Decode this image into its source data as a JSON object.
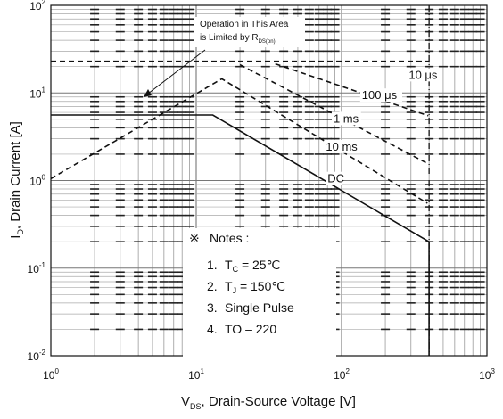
{
  "chart_data": {
    "type": "line",
    "xscale": "log",
    "yscale": "log",
    "xlim": [
      1,
      1000
    ],
    "ylim": [
      0.01,
      100
    ],
    "xlabel_main": "V",
    "xlabel_sub": "DS",
    "xlabel_rest": ", Drain-Source Voltage [V]",
    "ylabel_main": "I",
    "ylabel_sub": "D",
    "ylabel_rest": ", Drain Current [A]",
    "x_ticks": [
      {
        "value": 1,
        "base": "10",
        "exp": "0"
      },
      {
        "value": 10,
        "base": "10",
        "exp": "1"
      },
      {
        "value": 100,
        "base": "10",
        "exp": "2"
      },
      {
        "value": 1000,
        "base": "10",
        "exp": "3"
      }
    ],
    "y_ticks": [
      {
        "value": 100,
        "base": "10",
        "exp": "2"
      },
      {
        "value": 10,
        "base": "10",
        "exp": "1"
      },
      {
        "value": 1,
        "base": "10",
        "exp": "0"
      },
      {
        "value": 0.1,
        "base": "10",
        "exp": "-1"
      },
      {
        "value": 0.01,
        "base": "10",
        "exp": "-2"
      }
    ],
    "grid": true,
    "series": [
      {
        "name": "DC",
        "style": "solid",
        "points": [
          [
            1,
            5.6
          ],
          [
            13,
            5.6
          ],
          [
            400,
            0.2
          ],
          [
            400,
            0.01
          ]
        ]
      },
      {
        "name": "10 ms",
        "style": "dashed",
        "points": [
          [
            1,
            1.05
          ],
          [
            15,
            14.5
          ],
          [
            390,
            0.55
          ]
        ]
      },
      {
        "name": "1 ms",
        "style": "dashed",
        "points": [
          [
            20,
            21
          ],
          [
            380,
            1.6
          ]
        ]
      },
      {
        "name": "100 μs",
        "style": "dashed",
        "points": [
          [
            35,
            21.5
          ],
          [
            395,
            5.5
          ]
        ]
      },
      {
        "name": "10 μs",
        "style": "dashed",
        "points": [
          [
            1,
            23
          ],
          [
            400,
            23
          ]
        ]
      }
    ],
    "vertical_marker": {
      "x": 400,
      "style": "dash-dot"
    },
    "labels": [
      {
        "text": "10 μs",
        "x": 290,
        "y": 14.5
      },
      {
        "text": "100 μs",
        "x": 138,
        "y": 8.5
      },
      {
        "text": "1 ms",
        "x": 88,
        "y": 4.6
      },
      {
        "text": "10 ms",
        "x": 78,
        "y": 2.2
      },
      {
        "text": "DC",
        "x": 80,
        "y": 0.95
      }
    ],
    "annotation": {
      "line1": "Operation in This Area",
      "line2": "is Limited by R",
      "line2_sub": "DS(on)"
    },
    "notes": {
      "symbol": "※",
      "title": "Notes :",
      "items": [
        {
          "num": "1.",
          "main": "T",
          "sub": "C",
          "rest": " = 25℃"
        },
        {
          "num": "2.",
          "main": "T",
          "sub": "J",
          "rest": " = 150℃"
        },
        {
          "num": "3.",
          "main": "Single Pulse",
          "sub": "",
          "rest": ""
        },
        {
          "num": "4.",
          "main": "TO – 220",
          "sub": "",
          "rest": ""
        }
      ]
    }
  }
}
